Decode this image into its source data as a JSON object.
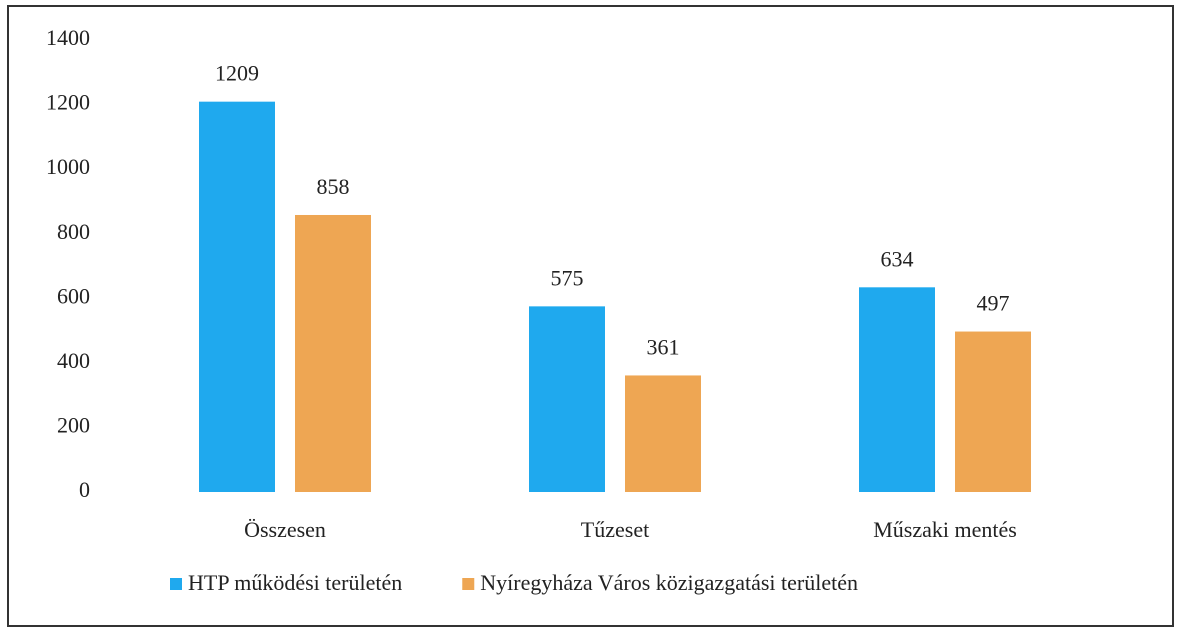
{
  "chart_data": {
    "type": "bar",
    "categories": [
      "Összesen",
      "Tűzeset",
      "Műszaki mentés"
    ],
    "series": [
      {
        "name": "HTP működési területén",
        "color": "#1fa9ee",
        "values": [
          1209,
          575,
          634
        ]
      },
      {
        "name": "Nyíregyháza Város közigazgatási területén",
        "color": "#eea653",
        "values": [
          858,
          361,
          497
        ]
      }
    ],
    "ylim": [
      0,
      1400
    ],
    "yticks": [
      0,
      200,
      400,
      600,
      800,
      1000,
      1200,
      1400
    ],
    "grid": false,
    "legend": "bottom"
  }
}
